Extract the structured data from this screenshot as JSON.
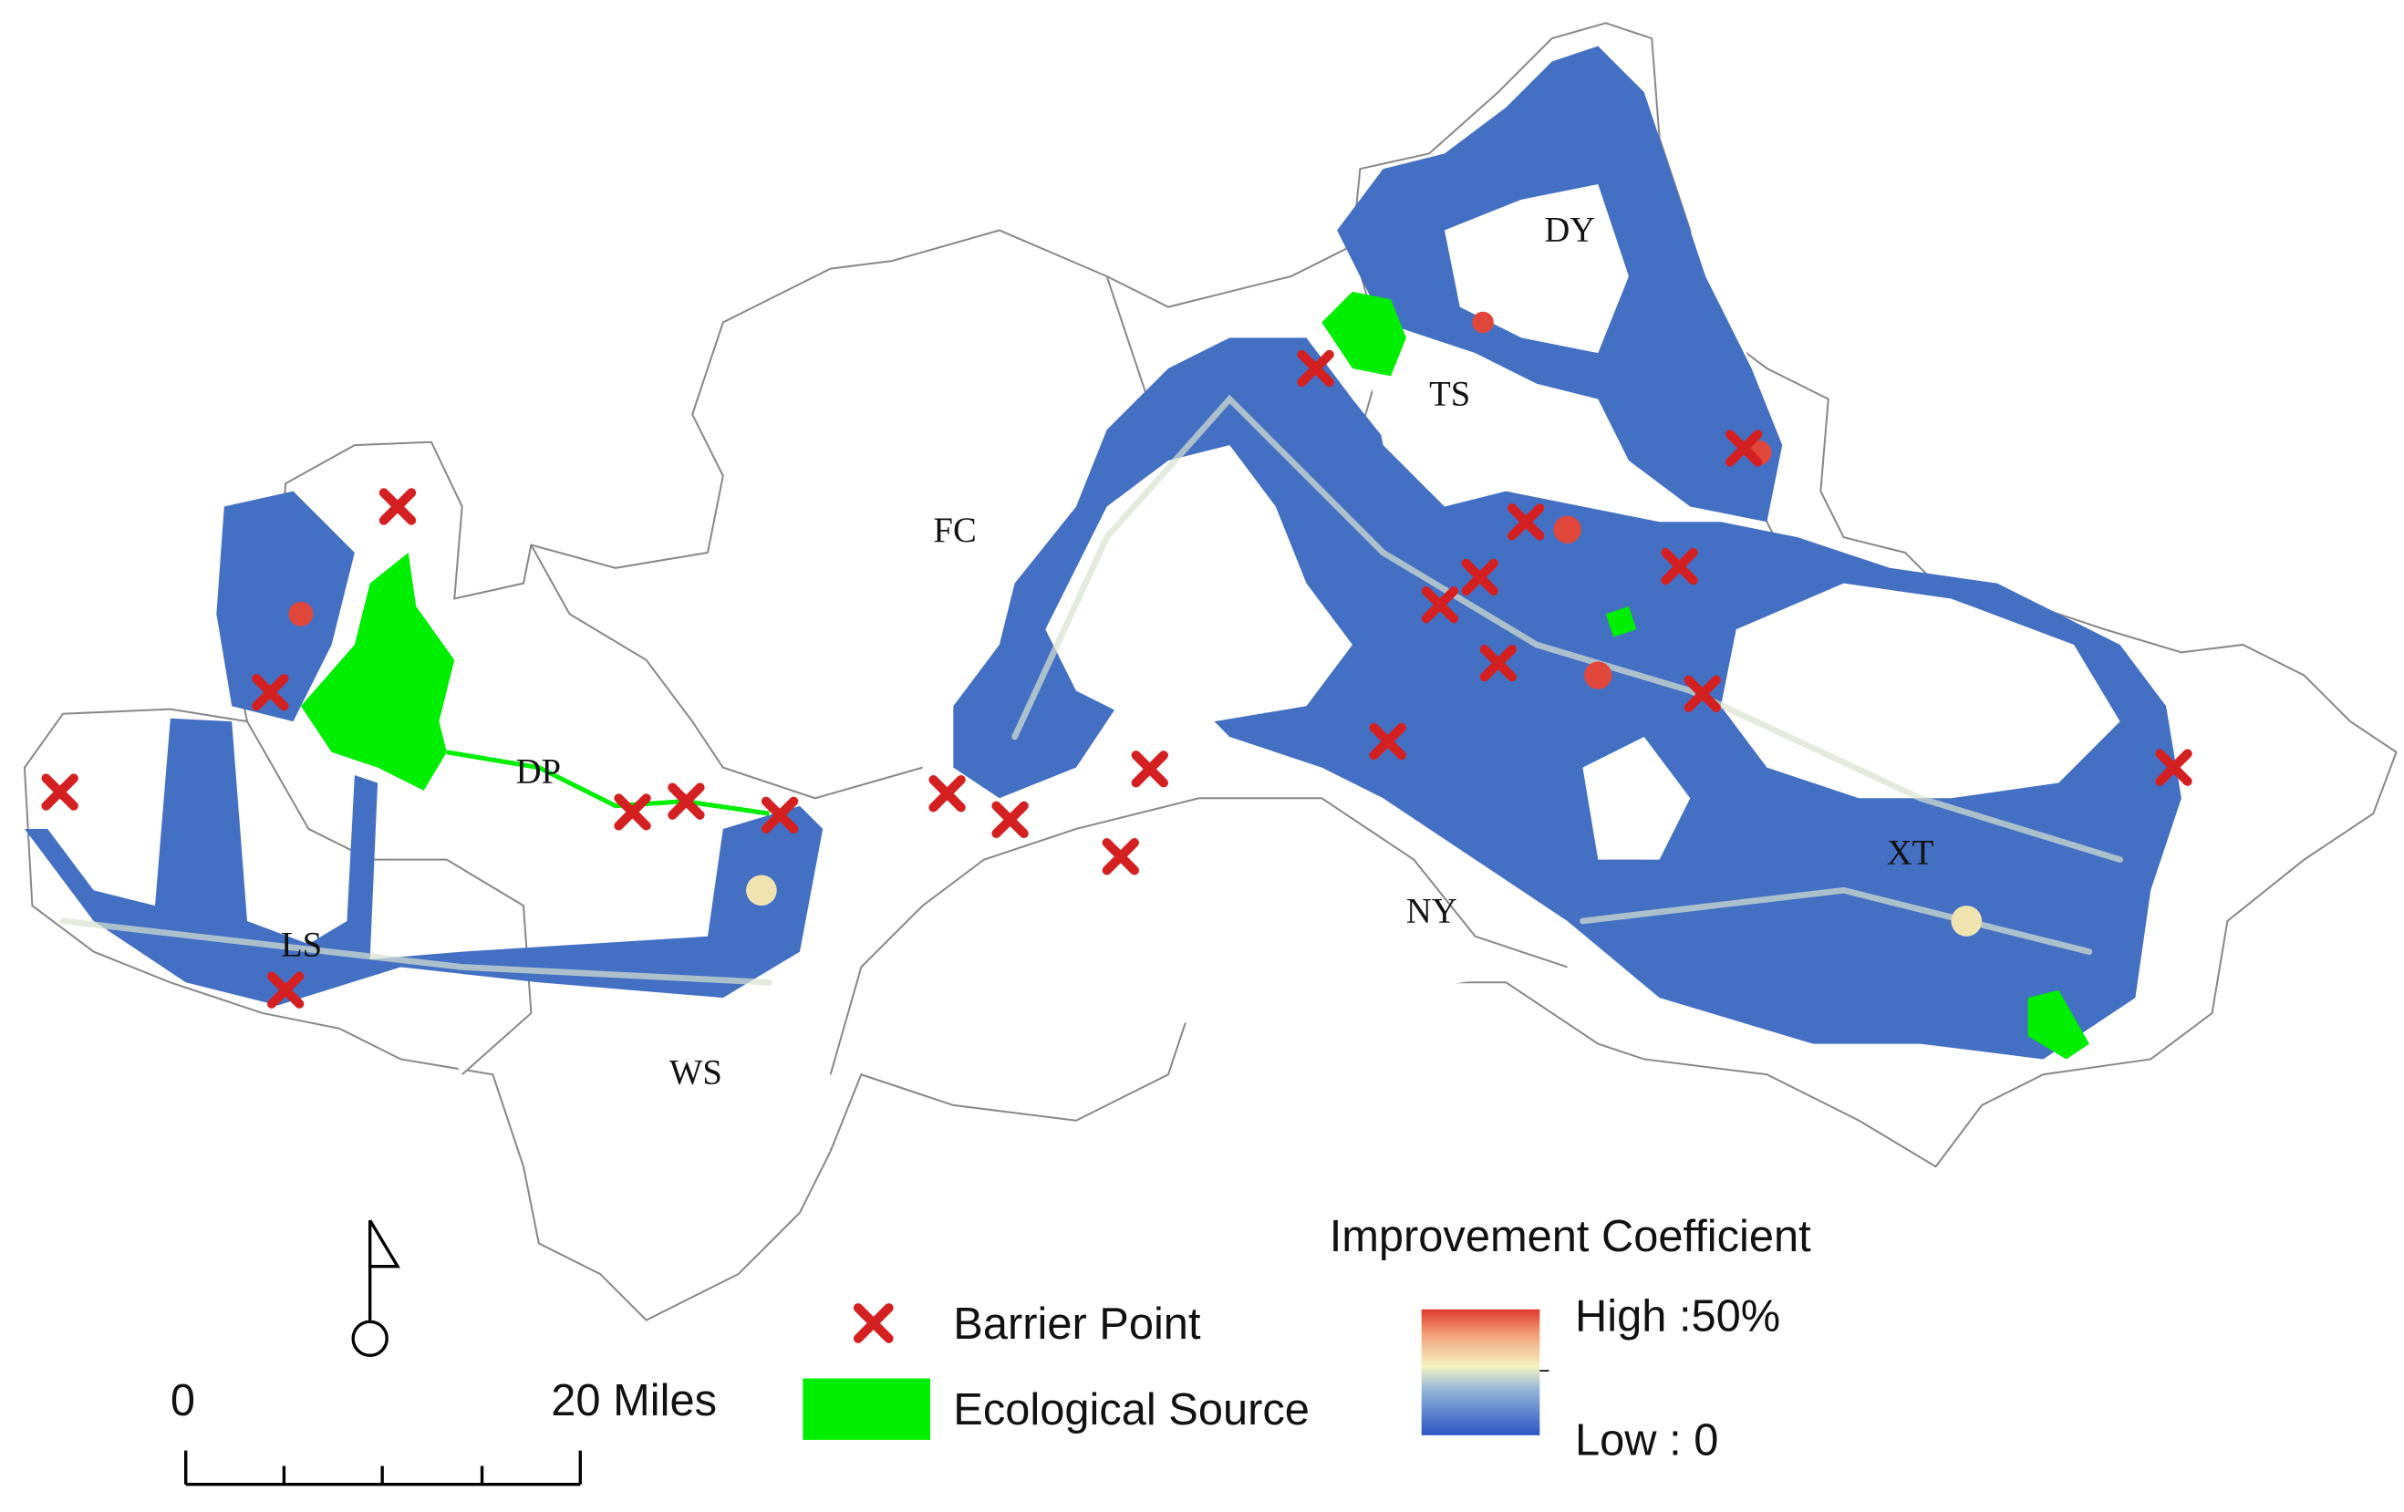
{
  "map": {
    "region_labels": [
      "DY",
      "TS",
      "FC",
      "DP",
      "NY",
      "LS",
      "WS",
      "XT"
    ],
    "legend": {
      "title": "Improvement Coefficient",
      "barrier_point": "Barrier Point",
      "ecological_source": "Ecological Source",
      "high": "High :50%",
      "low": "Low : 0"
    },
    "scale_bar": {
      "start": "0",
      "end": "20 Miles"
    }
  }
}
